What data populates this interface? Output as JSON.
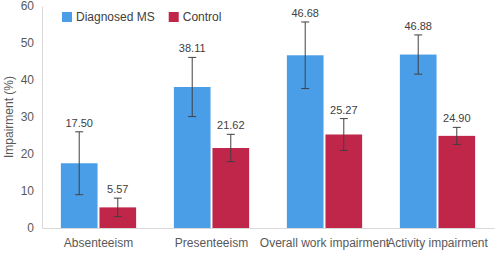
{
  "chart_data": {
    "type": "bar",
    "y_label": "Impairment (%)",
    "categories": [
      "Absenteeism",
      "Presenteeism",
      "Overall work impairment",
      "Activity impairment"
    ],
    "series": [
      {
        "name": "Diagnosed MS",
        "color": "#4a9ee8",
        "values": [
          17.5,
          38.11,
          46.68,
          46.88
        ],
        "value_labels": [
          "17.50",
          "38.11",
          "46.68",
          "46.88"
        ],
        "errors": [
          8.5,
          8,
          9,
          5.3
        ]
      },
      {
        "name": "Control",
        "color": "#c0254a",
        "values": [
          5.57,
          21.62,
          25.27,
          24.9
        ],
        "value_labels": [
          "5.57",
          "21.62",
          "25.27",
          "24.90"
        ],
        "errors": [
          2.5,
          3.7,
          4.3,
          2.3
        ]
      }
    ],
    "ylim": [
      0,
      60
    ],
    "yticks": [
      0,
      10,
      20,
      30,
      40,
      50,
      60
    ],
    "legend": "upper left",
    "data_labels": true,
    "grid": false
  }
}
